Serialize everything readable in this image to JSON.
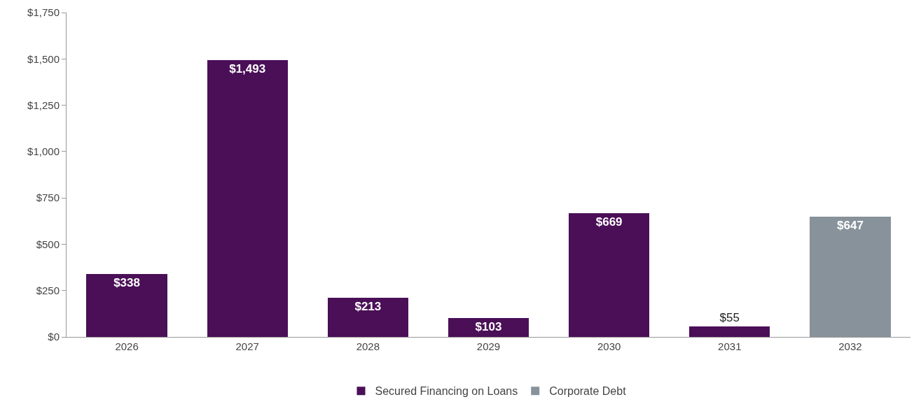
{
  "chart_data": {
    "type": "bar",
    "stacked": true,
    "categories": [
      "2026",
      "2027",
      "2028",
      "2029",
      "2030",
      "2031",
      "2032"
    ],
    "series": [
      {
        "name": "Secured Financing on Loans",
        "color": "#4a0f57",
        "values": [
          338,
          1493,
          213,
          103,
          669,
          55,
          null
        ],
        "value_labels": [
          "$338",
          "$1,493",
          "$213",
          "$103",
          "$669",
          "$55",
          null
        ]
      },
      {
        "name": "Corporate Debt",
        "color": "#87929a",
        "values": [
          null,
          null,
          null,
          null,
          null,
          null,
          647
        ],
        "value_labels": [
          null,
          null,
          null,
          null,
          null,
          null,
          "$647"
        ]
      }
    ],
    "ylim": [
      0,
      1750
    ],
    "yticks": [
      {
        "value": 0,
        "label": "$0"
      },
      {
        "value": 250,
        "label": "$250"
      },
      {
        "value": 500,
        "label": "$500"
      },
      {
        "value": 750,
        "label": "$750"
      },
      {
        "value": 1000,
        "label": "$1,000"
      },
      {
        "value": 1250,
        "label": "$1,250"
      },
      {
        "value": 1500,
        "label": "$1,500"
      },
      {
        "value": 1750,
        "label": "$1,750"
      }
    ],
    "grid": false,
    "legend": "bottom"
  }
}
